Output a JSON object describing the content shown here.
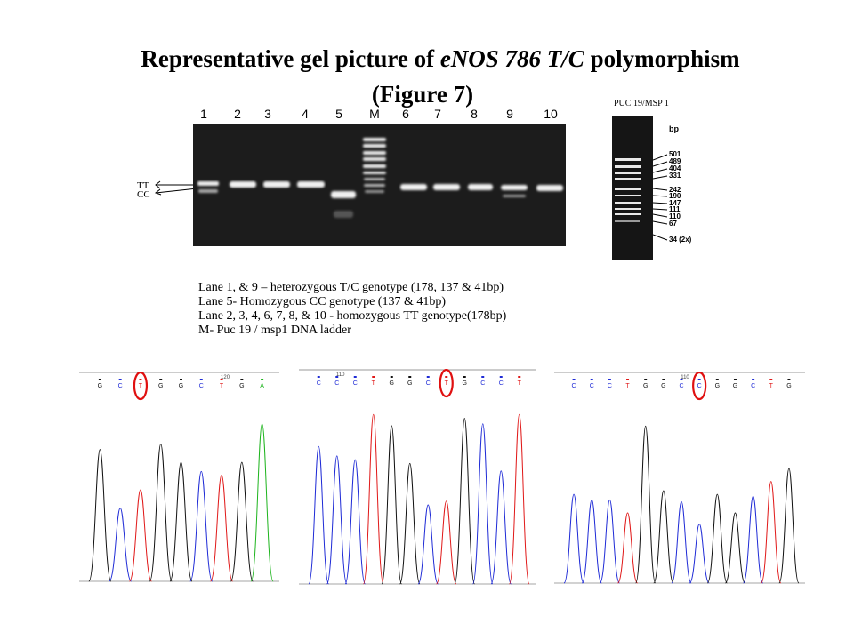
{
  "title": {
    "line1_prefix": "Representative gel picture of ",
    "line1_italic": "eNOS 786 T/C",
    "line1_suffix": " polymorphism",
    "line2": "(Figure 7)"
  },
  "gel": {
    "lane_labels": [
      "1",
      "2",
      "3",
      "4",
      "5",
      "M",
      "6",
      "7",
      "8",
      "9",
      "10"
    ],
    "genotype_labels": [
      "TT",
      "CC"
    ]
  },
  "ladder": {
    "title": "PUC 19/MSP 1",
    "unit": "bp",
    "sizes": [
      "501",
      "489",
      "404",
      "331",
      "242",
      "190",
      "147",
      "111",
      "110",
      "67",
      "34 (2x)"
    ]
  },
  "legend": [
    "Lane 1, & 9 – heterozygous T/C genotype (178, 137 & 41bp)",
    "Lane 5-  Homozygous CC genotype (137 & 41bp)",
    "Lane 2, 3, 4, 6, 7, 8, & 10 -  homozygous TT genotype(178bp)",
    "M- Puc 19 / msp1 DNA ladder"
  ],
  "chromatograms": [
    {
      "bases": [
        "G",
        "C",
        "T",
        "G",
        "G",
        "C",
        "T",
        "G",
        "A"
      ],
      "position_label": "120"
    },
    {
      "bases": [
        "C",
        "C",
        "C",
        "T",
        "G",
        "G",
        "C",
        "T",
        "G",
        "C",
        "C",
        "T"
      ],
      "position_label": "110"
    },
    {
      "bases": [
        "C",
        "C",
        "C",
        "T",
        "G",
        "G",
        "C",
        "C",
        "G",
        "G",
        "C",
        "T",
        "G"
      ],
      "position_label": "110"
    }
  ],
  "colors": {
    "A": "#1db41d",
    "C": "#1f2bd6",
    "G": "#111111",
    "T": "#e01818",
    "circle": "#e01010",
    "gel_bg": "#1c1c1c",
    "band": "#f2f2f2"
  }
}
